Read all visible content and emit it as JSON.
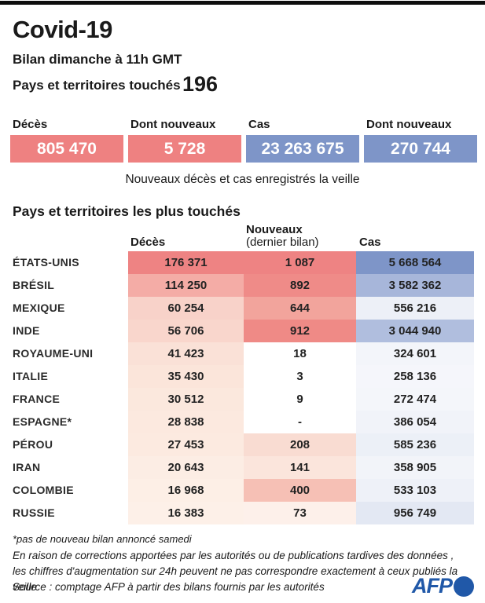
{
  "page": {
    "title": "Covid-19",
    "subtitle": "Bilan dimanche à 11h GMT",
    "affected_label": "Pays et territoires touchés",
    "affected_value": "196"
  },
  "summary": {
    "items": [
      {
        "label": "Décès",
        "value": "805 470",
        "bg": "#ee8181"
      },
      {
        "label": "Dont nouveaux",
        "value": "5 728",
        "bg": "#ee8181"
      },
      {
        "label": "Cas",
        "value": "23 263 675",
        "bg": "#7e95c8"
      },
      {
        "label": "Dont nouveaux",
        "value": "270 744",
        "bg": "#7e95c8"
      }
    ],
    "caption": "Nouveaux décès et cas enregistrés la veille"
  },
  "table": {
    "title": "Pays et territoires les plus touchés",
    "headers": {
      "deaths": "Décès",
      "new_line1": "Nouveaux",
      "new_line2": "(dernier bilan)",
      "cases": "Cas"
    },
    "rows": [
      {
        "country": "ÉTATS-UNIS",
        "deaths": "176 371",
        "deaths_bg": "#ee8383",
        "new": "1 087",
        "new_bg": "#ee8383",
        "cases": "5 668 564",
        "cases_bg": "#7e95c8"
      },
      {
        "country": "BRÉSIL",
        "deaths": "114 250",
        "deaths_bg": "#f4aca6",
        "new": "892",
        "new_bg": "#ef8b88",
        "cases": "3 582 362",
        "cases_bg": "#a7b6da"
      },
      {
        "country": "MEXIQUE",
        "deaths": "60 254",
        "deaths_bg": "#f8d2c9",
        "new": "644",
        "new_bg": "#f2a49c",
        "cases": "556 216",
        "cases_bg": "#edf0f7"
      },
      {
        "country": "INDE",
        "deaths": "56 706",
        "deaths_bg": "#f9d6cc",
        "new": "912",
        "new_bg": "#ef8a86",
        "cases": "3 044 940",
        "cases_bg": "#b0bede"
      },
      {
        "country": "ROYAUME-UNI",
        "deaths": "41 423",
        "deaths_bg": "#fae1d7",
        "new": "18",
        "new_bg": "#ffffff",
        "cases": "324 601",
        "cases_bg": "#f3f5fa"
      },
      {
        "country": "ITALIE",
        "deaths": "35 430",
        "deaths_bg": "#fbe5da",
        "new": "3",
        "new_bg": "#ffffff",
        "cases": "258 136",
        "cases_bg": "#f5f6fb"
      },
      {
        "country": "FRANCE",
        "deaths": "30 512",
        "deaths_bg": "#fbe8dd",
        "new": "9",
        "new_bg": "#ffffff",
        "cases": "272 474",
        "cases_bg": "#f4f6fa"
      },
      {
        "country": "ESPAGNE*",
        "deaths": "28 838",
        "deaths_bg": "#fce9df",
        "new": "-",
        "new_bg": "#ffffff",
        "cases": "386 054",
        "cases_bg": "#f1f3f9"
      },
      {
        "country": "PÉROU",
        "deaths": "27 453",
        "deaths_bg": "#fceae0",
        "new": "208",
        "new_bg": "#f9dcd2",
        "cases": "585 236",
        "cases_bg": "#ecf0f7"
      },
      {
        "country": "IRAN",
        "deaths": "20 643",
        "deaths_bg": "#fcede4",
        "new": "141",
        "new_bg": "#fbe5dc",
        "cases": "358 905",
        "cases_bg": "#f2f4f9"
      },
      {
        "country": "COLOMBIE",
        "deaths": "16 968",
        "deaths_bg": "#fdefe6",
        "new": "400",
        "new_bg": "#f6c0b5",
        "cases": "533 103",
        "cases_bg": "#eef1f8"
      },
      {
        "country": "RUSSIE",
        "deaths": "16 383",
        "deaths_bg": "#fdf0e8",
        "new": "73",
        "new_bg": "#fdf0ea",
        "cases": "956 749",
        "cases_bg": "#e3e8f3"
      }
    ]
  },
  "footer": {
    "footnote": "*pas de nouveau bilan annoncé samedi",
    "note": "En raison de corrections apportées par les autorités ou de publications tardives des données , les chiffres d'augmentation sur 24h peuvent ne pas correspondre exactement à ceux publiés la veille",
    "source": "Source : comptage AFP à partir des bilans fournis par les autorités",
    "logo_text": "AFP",
    "logo_color": "#2058a8"
  },
  "colors": {
    "deaths_accent": "#ee8181",
    "cases_accent": "#7e95c8",
    "topbar": "#0d0d0d"
  },
  "chart_data": {
    "type": "table",
    "title": "Covid-19 — Bilan dimanche à 11h GMT",
    "countries_affected": 196,
    "totals": {
      "deces": 805470,
      "deces_nouveaux": 5728,
      "cas": 23263675,
      "cas_nouveaux": 270744
    },
    "columns": [
      "Pays",
      "Décès",
      "Nouveaux (dernier bilan)",
      "Cas"
    ],
    "rows": [
      [
        "ÉTATS-UNIS",
        176371,
        1087,
        5668564
      ],
      [
        "BRÉSIL",
        114250,
        892,
        3582362
      ],
      [
        "MEXIQUE",
        60254,
        644,
        556216
      ],
      [
        "INDE",
        56706,
        912,
        3044940
      ],
      [
        "ROYAUME-UNI",
        41423,
        18,
        324601
      ],
      [
        "ITALIE",
        35430,
        3,
        258136
      ],
      [
        "FRANCE",
        30512,
        9,
        272474
      ],
      [
        "ESPAGNE*",
        28838,
        null,
        386054
      ],
      [
        "PÉROU",
        27453,
        208,
        585236
      ],
      [
        "IRAN",
        20643,
        141,
        358905
      ],
      [
        "COLOMBIE",
        16968,
        400,
        533103
      ],
      [
        "RUSSIE",
        16383,
        73,
        956749
      ]
    ],
    "note": "Cell shading intensity is proportional to value; red = décès/nouveaux, blue = cas"
  }
}
